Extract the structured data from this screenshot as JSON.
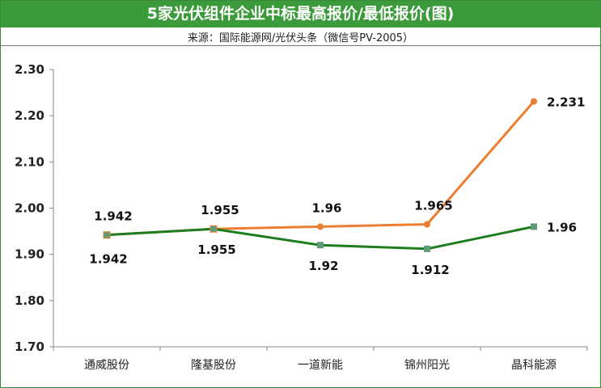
{
  "header": {
    "title": "5家光伏组件企业中标最高报价/最低报价(图)",
    "source": "来源：国际能源网/光伏头条（微信号PV-2005）"
  },
  "colors": {
    "title_bg": "#3b9a3a",
    "highest": "#ed7d31",
    "lowest": "#1e7d1e"
  },
  "chart_data": {
    "type": "line",
    "title": "5家光伏组件企业中标最高报价/最低报价(图)",
    "categories": [
      "通威股份",
      "隆基股份",
      "一道新能",
      "锦州阳光",
      "晶科能源"
    ],
    "series": [
      {
        "values": [
          1.942,
          1.955,
          1.96,
          1.965,
          2.231
        ],
        "labels": [
          "1.942",
          "1.955",
          "1.96",
          "1.965",
          "2.231"
        ],
        "color": "#ed7d31"
      },
      {
        "values": [
          1.942,
          1.955,
          1.92,
          1.912,
          1.96
        ],
        "labels": [
          "1.942",
          "1.955",
          "1.92",
          "1.912",
          "1.96"
        ],
        "color": "#1e7d1e"
      }
    ],
    "ylim": [
      1.7,
      2.3
    ],
    "yticks": [
      "1.70",
      "1.80",
      "1.90",
      "2.00",
      "2.10",
      "2.20",
      "2.30"
    ],
    "grid": false,
    "legend": "none"
  }
}
